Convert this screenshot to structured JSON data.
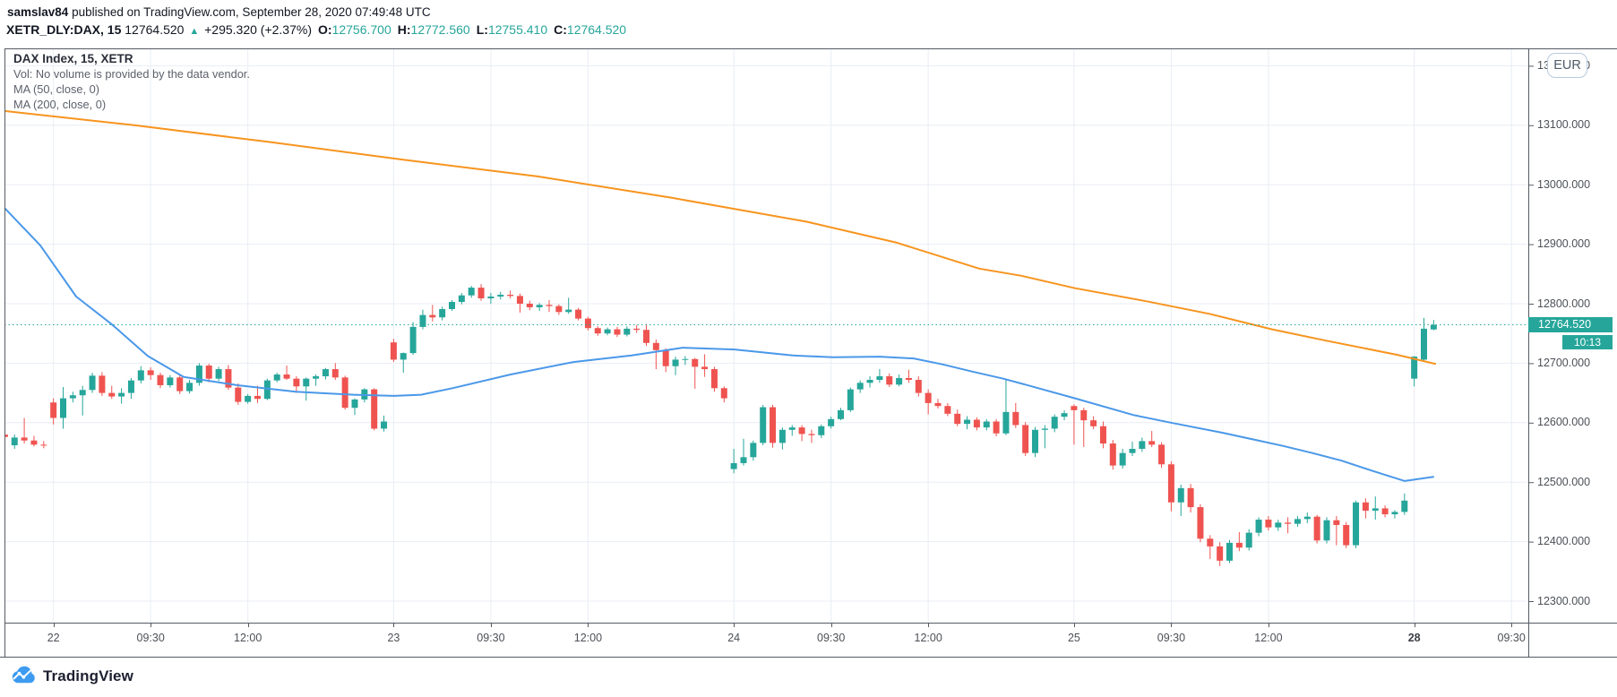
{
  "header": {
    "author": "samslav84",
    "published": " published on TradingView.com, September 28, 2020 07:49:48 UTC",
    "symbol": "XETR_DLY:DAX, 15",
    "last_price": "12764.520",
    "direction_glyph": "▲",
    "change": "+295.320 (+2.37%)",
    "ohlc": [
      {
        "label": "O:",
        "value": "12756.700"
      },
      {
        "label": "H:",
        "value": "12772.560"
      },
      {
        "label": "L:",
        "value": "12755.410"
      },
      {
        "label": "C:",
        "value": "12764.520"
      }
    ]
  },
  "legend": {
    "title": "DAX Index, 15, XETR",
    "volume_note": "Vol: No volume is provided by the data vendor.",
    "ma50_label": "MA (50, close, 0)",
    "ma200_label": "MA (200, close, 0)"
  },
  "price_scale": {
    "currency_button": "EUR",
    "last_price_badge": "12764.520",
    "countdown_badge": "10:13"
  },
  "watermark": {
    "brand": "TradingView"
  },
  "colors": {
    "up": "#26a69a",
    "down": "#ef5350",
    "ma50": "#4a98e9",
    "ma200": "#f7941e",
    "grid": "#e8edf4",
    "border": "#555a63",
    "axis_text": "#4c5056",
    "accent": "#26a69a",
    "header_text": "#131722"
  },
  "chart_data": {
    "type": "candlestick",
    "title": "DAX Index, 15, XETR",
    "symbol": "DAX",
    "exchange": "XETR",
    "interval": "15",
    "currency": "EUR",
    "current_price": 12764.52,
    "countdown": "10:13",
    "y_axis": {
      "gridline_prices": [
        13200,
        13100,
        13000,
        12900,
        12800,
        12700,
        12600,
        12500,
        12400,
        12300
      ],
      "labels": [
        "13200.000",
        "13100.000",
        "13000.000",
        "12900.000",
        "12800.000",
        "12700.000",
        "12600.000",
        "12500.000",
        "12400.000",
        "12300.000"
      ]
    },
    "x_axis": {
      "ticks": [
        {
          "bar": 5,
          "label": "22",
          "bold": false
        },
        {
          "bar": 15,
          "label": "09:30",
          "bold": false
        },
        {
          "bar": 25,
          "label": "12:00",
          "bold": false
        },
        {
          "bar": 40,
          "label": "23",
          "bold": false
        },
        {
          "bar": 50,
          "label": "09:30",
          "bold": false
        },
        {
          "bar": 60,
          "label": "12:00",
          "bold": false
        },
        {
          "bar": 75,
          "label": "24",
          "bold": false
        },
        {
          "bar": 85,
          "label": "09:30",
          "bold": false
        },
        {
          "bar": 95,
          "label": "12:00",
          "bold": false
        },
        {
          "bar": 110,
          "label": "25",
          "bold": false
        },
        {
          "bar": 120,
          "label": "09:30",
          "bold": false
        },
        {
          "bar": 130,
          "label": "12:00",
          "bold": false
        },
        {
          "bar": 145,
          "label": "28",
          "bold": true
        },
        {
          "bar": 155,
          "label": "09:30",
          "bold": false
        }
      ]
    },
    "candles_ohlc": [
      [
        12580,
        12586,
        12570,
        12576
      ],
      [
        12562,
        12580,
        12556,
        12575
      ],
      [
        12575,
        12608,
        12565,
        12570
      ],
      [
        12570,
        12578,
        12560,
        12563
      ],
      [
        12563,
        12569,
        12557,
        12562
      ],
      [
        12634,
        12641,
        12597,
        12608
      ],
      [
        12608,
        12660,
        12590,
        12641
      ],
      [
        12641,
        12652,
        12634,
        12646
      ],
      [
        12646,
        12662,
        12612,
        12655
      ],
      [
        12655,
        12684,
        12650,
        12679
      ],
      [
        12679,
        12685,
        12645,
        12650
      ],
      [
        12650,
        12662,
        12640,
        12644
      ],
      [
        12644,
        12658,
        12632,
        12650
      ],
      [
        12650,
        12675,
        12640,
        12671
      ],
      [
        12671,
        12695,
        12666,
        12688
      ],
      [
        12688,
        12693,
        12672,
        12680
      ],
      [
        12680,
        12684,
        12658,
        12663
      ],
      [
        12663,
        12680,
        12659,
        12676
      ],
      [
        12676,
        12681,
        12648,
        12653
      ],
      [
        12653,
        12672,
        12649,
        12667
      ],
      [
        12667,
        12700,
        12662,
        12696
      ],
      [
        12696,
        12699,
        12668,
        12674
      ],
      [
        12674,
        12694,
        12670,
        12690
      ],
      [
        12690,
        12697,
        12655,
        12659
      ],
      [
        12659,
        12666,
        12630,
        12635
      ],
      [
        12635,
        12648,
        12632,
        12645
      ],
      [
        12645,
        12662,
        12633,
        12640
      ],
      [
        12640,
        12674,
        12638,
        12671
      ],
      [
        12671,
        12684,
        12668,
        12681
      ],
      [
        12681,
        12696,
        12672,
        12674
      ],
      [
        12674,
        12678,
        12650,
        12661
      ],
      [
        12661,
        12676,
        12637,
        12674
      ],
      [
        12674,
        12681,
        12662,
        12678
      ],
      [
        12678,
        12692,
        12673,
        12690
      ],
      [
        12690,
        12700,
        12672,
        12676
      ],
      [
        12676,
        12679,
        12622,
        12625
      ],
      [
        12625,
        12641,
        12613,
        12639
      ],
      [
        12639,
        12658,
        12634,
        12656
      ],
      [
        12656,
        12658,
        12587,
        12590
      ],
      [
        12590,
        12612,
        12585,
        12602
      ],
      [
        12735,
        12741,
        12702,
        12706
      ],
      [
        12706,
        12718,
        12684,
        12717
      ],
      [
        12717,
        12769,
        12714,
        12761
      ],
      [
        12761,
        12790,
        12757,
        12781
      ],
      [
        12781,
        12798,
        12770,
        12777
      ],
      [
        12777,
        12795,
        12772,
        12791
      ],
      [
        12791,
        12806,
        12788,
        12803
      ],
      [
        12803,
        12818,
        12799,
        12814
      ],
      [
        12814,
        12830,
        12810,
        12827
      ],
      [
        12827,
        12833,
        12805,
        12809
      ],
      [
        12809,
        12818,
        12800,
        12812
      ],
      [
        12812,
        12820,
        12807,
        12815
      ],
      [
        12815,
        12822,
        12809,
        12813
      ],
      [
        12813,
        12817,
        12785,
        12800
      ],
      [
        12800,
        12805,
        12789,
        12794
      ],
      [
        12794,
        12801,
        12788,
        12798
      ],
      [
        12798,
        12806,
        12786,
        12796
      ],
      [
        12796,
        12799,
        12781,
        12786
      ],
      [
        12786,
        12810,
        12783,
        12790
      ],
      [
        12790,
        12793,
        12772,
        12775
      ],
      [
        12775,
        12778,
        12755,
        12759
      ],
      [
        12759,
        12762,
        12746,
        12750
      ],
      [
        12750,
        12760,
        12747,
        12757
      ],
      [
        12757,
        12761,
        12744,
        12748
      ],
      [
        12748,
        12762,
        12745,
        12758
      ],
      [
        12758,
        12764,
        12751,
        12756
      ],
      [
        12756,
        12766,
        12729,
        12734
      ],
      [
        12734,
        12740,
        12690,
        12722
      ],
      [
        12722,
        12725,
        12685,
        12695
      ],
      [
        12695,
        12711,
        12680,
        12706
      ],
      [
        12706,
        12712,
        12697,
        12707
      ],
      [
        12707,
        12709,
        12657,
        12694
      ],
      [
        12694,
        12715,
        12677,
        12690
      ],
      [
        12690,
        12694,
        12652,
        12658
      ],
      [
        12658,
        12661,
        12634,
        12641
      ],
      [
        12522,
        12556,
        12515,
        12532
      ],
      [
        12532,
        12573,
        12528,
        12542
      ],
      [
        12542,
        12570,
        12536,
        12566
      ],
      [
        12566,
        12630,
        12562,
        12626
      ],
      [
        12626,
        12630,
        12558,
        12566
      ],
      [
        12566,
        12592,
        12555,
        12588
      ],
      [
        12588,
        12596,
        12578,
        12592
      ],
      [
        12592,
        12596,
        12569,
        12581
      ],
      [
        12581,
        12588,
        12566,
        12579
      ],
      [
        12579,
        12597,
        12574,
        12594
      ],
      [
        12594,
        12610,
        12590,
        12606
      ],
      [
        12606,
        12625,
        12604,
        12621
      ],
      [
        12621,
        12659,
        12618,
        12656
      ],
      [
        12656,
        12671,
        12650,
        12667
      ],
      [
        12667,
        12678,
        12659,
        12672
      ],
      [
        12672,
        12690,
        12667,
        12678
      ],
      [
        12678,
        12683,
        12660,
        12664
      ],
      [
        12664,
        12681,
        12661,
        12675
      ],
      [
        12675,
        12689,
        12667,
        12672
      ],
      [
        12672,
        12678,
        12644,
        12650
      ],
      [
        12650,
        12656,
        12614,
        12633
      ],
      [
        12633,
        12640,
        12624,
        12628
      ],
      [
        12628,
        12633,
        12611,
        12615
      ],
      [
        12615,
        12622,
        12594,
        12598
      ],
      [
        12598,
        12611,
        12589,
        12605
      ],
      [
        12605,
        12609,
        12587,
        12592
      ],
      [
        12592,
        12606,
        12587,
        12602
      ],
      [
        12602,
        12606,
        12577,
        12582
      ],
      [
        12582,
        12674,
        12579,
        12618
      ],
      [
        12618,
        12633,
        12591,
        12596
      ],
      [
        12596,
        12601,
        12544,
        12549
      ],
      [
        12549,
        12593,
        12542,
        12588
      ],
      [
        12588,
        12596,
        12557,
        12590
      ],
      [
        12590,
        12614,
        12584,
        12610
      ],
      [
        12610,
        12621,
        12604,
        12616
      ],
      [
        12628,
        12631,
        12563,
        12621
      ],
      [
        12621,
        12625,
        12559,
        12604
      ],
      [
        12604,
        12611,
        12589,
        12594
      ],
      [
        12594,
        12602,
        12557,
        12565
      ],
      [
        12565,
        12571,
        12521,
        12528
      ],
      [
        12528,
        12556,
        12523,
        12549
      ],
      [
        12549,
        12568,
        12544,
        12556
      ],
      [
        12556,
        12575,
        12551,
        12569
      ],
      [
        12569,
        12586,
        12559,
        12563
      ],
      [
        12563,
        12567,
        12524,
        12530
      ],
      [
        12530,
        12535,
        12451,
        12466
      ],
      [
        12466,
        12496,
        12443,
        12490
      ],
      [
        12490,
        12497,
        12449,
        12458
      ],
      [
        12458,
        12463,
        12399,
        12405
      ],
      [
        12405,
        12411,
        12371,
        12392
      ],
      [
        12392,
        12399,
        12359,
        12368
      ],
      [
        12368,
        12403,
        12364,
        12398
      ],
      [
        12398,
        12416,
        12384,
        12390
      ],
      [
        12390,
        12421,
        12385,
        12415
      ],
      [
        12415,
        12441,
        12409,
        12437
      ],
      [
        12437,
        12443,
        12419,
        12424
      ],
      [
        12424,
        12437,
        12418,
        12432
      ],
      [
        12432,
        12441,
        12414,
        12430
      ],
      [
        12430,
        12443,
        12425,
        12438
      ],
      [
        12438,
        12449,
        12431,
        12442
      ],
      [
        12442,
        12445,
        12397,
        12402
      ],
      [
        12402,
        12441,
        12397,
        12436
      ],
      [
        12436,
        12443,
        12394,
        12428
      ],
      [
        12428,
        12433,
        12389,
        12394
      ],
      [
        12394,
        12469,
        12389,
        12466
      ],
      [
        12466,
        12473,
        12439,
        12452
      ],
      [
        12452,
        12476,
        12437,
        12456
      ],
      [
        12456,
        12461,
        12441,
        12446
      ],
      [
        12446,
        12453,
        12439,
        12450
      ],
      [
        12450,
        12481,
        12445,
        12469
      ],
      [
        12674,
        12712,
        12661,
        12711
      ],
      [
        12706,
        12776,
        12703,
        12758
      ],
      [
        12756.7,
        12772.56,
        12755.41,
        12764.52
      ]
    ],
    "overlays": [
      {
        "name": "MA50",
        "color": "#4a98e9",
        "points": [
          [
            5,
            12961
          ],
          [
            45,
            12898
          ],
          [
            85,
            12812
          ],
          [
            125,
            12765
          ],
          [
            165,
            12712
          ],
          [
            205,
            12677
          ],
          [
            265,
            12663
          ],
          [
            330,
            12652
          ],
          [
            395,
            12647
          ],
          [
            440,
            12645
          ],
          [
            470,
            12647
          ],
          [
            505,
            12658
          ],
          [
            570,
            12681
          ],
          [
            640,
            12702
          ],
          [
            705,
            12713
          ],
          [
            762,
            12726
          ],
          [
            820,
            12723
          ],
          [
            885,
            12713
          ],
          [
            930,
            12710
          ],
          [
            982,
            12711
          ],
          [
            1020,
            12708
          ],
          [
            1052,
            12698
          ],
          [
            1085,
            12686
          ],
          [
            1120,
            12674
          ],
          [
            1142,
            12665
          ],
          [
            1200,
            12641
          ],
          [
            1265,
            12613
          ],
          [
            1307,
            12600
          ],
          [
            1365,
            12583
          ],
          [
            1432,
            12561
          ],
          [
            1465,
            12549
          ],
          [
            1498,
            12536
          ],
          [
            1532,
            12519
          ],
          [
            1568,
            12502
          ],
          [
            1600,
            12509
          ]
        ]
      },
      {
        "name": "MA200",
        "color": "#f7941e",
        "points": [
          [
            5,
            13124
          ],
          [
            150,
            13100
          ],
          [
            300,
            13072
          ],
          [
            450,
            13042
          ],
          [
            600,
            13014
          ],
          [
            750,
            12978
          ],
          [
            900,
            12938
          ],
          [
            1000,
            12903
          ],
          [
            1093,
            12859
          ],
          [
            1140,
            12847
          ],
          [
            1200,
            12826
          ],
          [
            1280,
            12804
          ],
          [
            1350,
            12783
          ],
          [
            1420,
            12757
          ],
          [
            1480,
            12738
          ],
          [
            1560,
            12714
          ],
          [
            1602,
            12699
          ]
        ]
      }
    ]
  }
}
